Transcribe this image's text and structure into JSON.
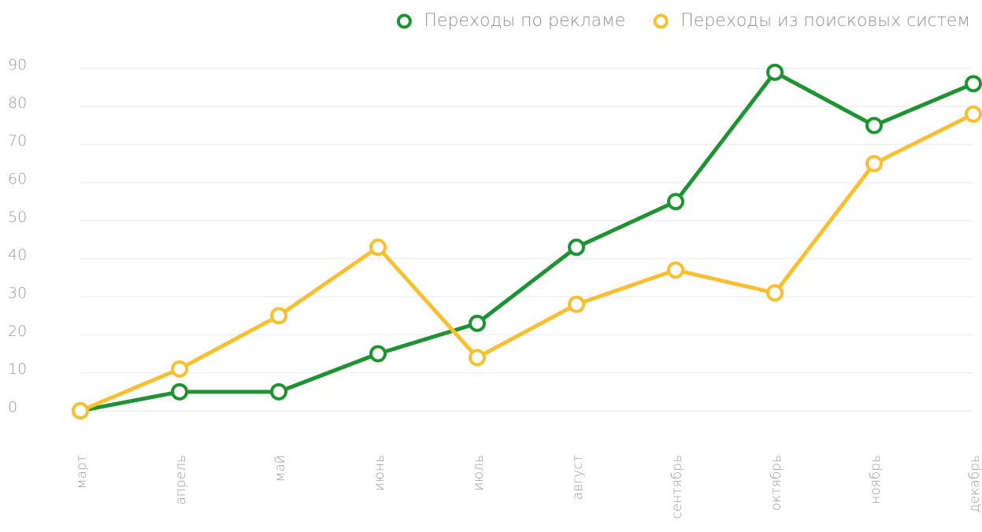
{
  "chart_data": {
    "type": "line",
    "categories": [
      "март",
      "апрель",
      "май",
      "июнь",
      "июль",
      "август",
      "сентябрь",
      "октябрь",
      "ноябрь",
      "декабрь"
    ],
    "series": [
      {
        "name": "Переходы по рекламе",
        "color": "#1e9331",
        "values": [
          0,
          5,
          5,
          15,
          23,
          43,
          55,
          89,
          75,
          86
        ]
      },
      {
        "name": "Переходы из поисковых систем",
        "color": "#f8c030",
        "values": [
          0,
          11,
          25,
          43,
          14,
          28,
          37,
          31,
          65,
          78
        ]
      }
    ],
    "ylim": [
      0,
      90
    ],
    "yticks": [
      0,
      10,
      20,
      30,
      40,
      50,
      60,
      70,
      80,
      90
    ],
    "grid": true,
    "legend": "top-right"
  }
}
